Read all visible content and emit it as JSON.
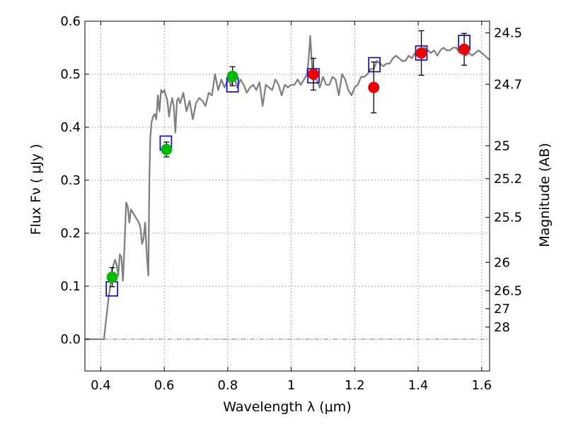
{
  "chart_data": {
    "type": "line",
    "title": "",
    "xlabel": "Wavelength  λ (μm)",
    "ylabel": "Flux  Fν  ( μJy )",
    "ylabel_right": "Magnitude (AB)",
    "xlim": [
      0.35,
      1.625
    ],
    "ylim": [
      -0.06,
      0.6
    ],
    "grid": true,
    "xticks": [
      0.4,
      0.6,
      0.8,
      1.0,
      1.2,
      1.4,
      1.6
    ],
    "xtick_labels": [
      "0.4",
      "0.6",
      "0.8",
      "1",
      "1.2",
      "1.4",
      "1.6"
    ],
    "yticks": [
      0.0,
      0.1,
      0.2,
      0.3,
      0.4,
      0.5,
      0.6
    ],
    "ytick_labels": [
      "0.0",
      "0.1",
      "0.2",
      "0.3",
      "0.4",
      "0.5",
      "0.6"
    ],
    "right_ticks": [
      {
        "label": "24.5",
        "flux": 0.578
      },
      {
        "label": "24.7",
        "flux": 0.481
      },
      {
        "label": "25",
        "flux": 0.365
      },
      {
        "label": "25.2",
        "flux": 0.303
      },
      {
        "label": "25.5",
        "flux": 0.23
      },
      {
        "label": "26",
        "flux": 0.145
      },
      {
        "label": "26.5",
        "flux": 0.0912
      },
      {
        "label": "27",
        "flux": 0.0575
      },
      {
        "label": "28",
        "flux": 0.0229
      }
    ],
    "series": [
      {
        "kind": "line",
        "color": "#808080",
        "x": [
          0.35,
          0.41,
          0.425,
          0.43,
          0.435,
          0.44,
          0.445,
          0.45,
          0.455,
          0.46,
          0.465,
          0.47,
          0.475,
          0.48,
          0.485,
          0.49,
          0.495,
          0.5,
          0.51,
          0.52,
          0.525,
          0.53,
          0.535,
          0.54,
          0.545,
          0.55,
          0.553,
          0.556,
          0.56,
          0.565,
          0.57,
          0.575,
          0.58,
          0.585,
          0.59,
          0.595,
          0.6,
          0.605,
          0.61,
          0.615,
          0.62,
          0.625,
          0.63,
          0.635,
          0.64,
          0.645,
          0.65,
          0.66,
          0.67,
          0.68,
          0.69,
          0.7,
          0.71,
          0.72,
          0.73,
          0.74,
          0.75,
          0.76,
          0.77,
          0.78,
          0.79,
          0.8,
          0.81,
          0.82,
          0.83,
          0.84,
          0.85,
          0.86,
          0.87,
          0.88,
          0.89,
          0.9,
          0.91,
          0.92,
          0.93,
          0.94,
          0.95,
          0.96,
          0.97,
          0.98,
          0.99,
          1.0,
          1.01,
          1.02,
          1.03,
          1.04,
          1.05,
          1.055,
          1.06,
          1.065,
          1.07,
          1.08,
          1.09,
          1.1,
          1.11,
          1.12,
          1.13,
          1.14,
          1.15,
          1.16,
          1.17,
          1.18,
          1.19,
          1.2,
          1.21,
          1.22,
          1.23,
          1.24,
          1.25,
          1.26,
          1.27,
          1.28,
          1.29,
          1.3,
          1.31,
          1.32,
          1.33,
          1.34,
          1.35,
          1.36,
          1.37,
          1.38,
          1.39,
          1.4,
          1.41,
          1.42,
          1.43,
          1.44,
          1.45,
          1.46,
          1.47,
          1.48,
          1.49,
          1.5,
          1.51,
          1.52,
          1.53,
          1.54,
          1.55,
          1.56,
          1.57,
          1.58,
          1.59,
          1.6,
          1.61,
          1.625
        ],
        "y": [
          0.0,
          0.0,
          0.08,
          0.1,
          0.13,
          0.14,
          0.15,
          0.14,
          0.12,
          0.16,
          0.155,
          0.11,
          0.18,
          0.258,
          0.25,
          0.22,
          0.245,
          0.24,
          0.23,
          0.22,
          0.21,
          0.18,
          0.19,
          0.22,
          0.16,
          0.12,
          0.3,
          0.38,
          0.41,
          0.42,
          0.425,
          0.415,
          0.46,
          0.43,
          0.47,
          0.465,
          0.47,
          0.46,
          0.45,
          0.42,
          0.44,
          0.455,
          0.44,
          0.39,
          0.45,
          0.455,
          0.445,
          0.465,
          0.43,
          0.45,
          0.415,
          0.445,
          0.455,
          0.45,
          0.44,
          0.465,
          0.46,
          0.5,
          0.47,
          0.49,
          0.475,
          0.49,
          0.48,
          0.495,
          0.475,
          0.49,
          0.48,
          0.465,
          0.475,
          0.48,
          0.47,
          0.485,
          0.44,
          0.48,
          0.475,
          0.47,
          0.49,
          0.48,
          0.46,
          0.48,
          0.475,
          0.48,
          0.48,
          0.49,
          0.48,
          0.49,
          0.5,
          0.53,
          0.572,
          0.52,
          0.49,
          0.49,
          0.475,
          0.495,
          0.48,
          0.48,
          0.495,
          0.49,
          0.46,
          0.5,
          0.49,
          0.47,
          0.46,
          0.475,
          0.48,
          0.495,
          0.495,
          0.5,
          0.51,
          0.51,
          0.525,
          0.52,
          0.515,
          0.52,
          0.52,
          0.53,
          0.535,
          0.53,
          0.525,
          0.525,
          0.535,
          0.53,
          0.54,
          0.54,
          0.545,
          0.55,
          0.545,
          0.54,
          0.545,
          0.535,
          0.545,
          0.55,
          0.545,
          0.545,
          0.55,
          0.55,
          0.54,
          0.545,
          0.535,
          0.54,
          0.535,
          0.54,
          0.545,
          0.54,
          0.535,
          0.527
        ]
      },
      {
        "kind": "squares",
        "color": "#0000cc",
        "x": [
          0.435,
          0.605,
          0.815,
          1.07,
          1.262,
          1.41,
          1.545
        ],
        "y": [
          0.095,
          0.37,
          0.48,
          0.497,
          0.518,
          0.54,
          0.56
        ]
      },
      {
        "kind": "points",
        "color": "#00bb00",
        "x": [
          0.436,
          0.607,
          0.815
        ],
        "y": [
          0.117,
          0.358,
          0.496
        ],
        "err": [
          0.018,
          0.014,
          0.018
        ]
      },
      {
        "kind": "points",
        "color": "#ee0000",
        "x": [
          1.07,
          1.26,
          1.41,
          1.545
        ],
        "y": [
          0.5,
          0.475,
          0.54,
          0.547
        ],
        "err": [
          0.03,
          0.048,
          0.042,
          0.03
        ]
      }
    ]
  }
}
